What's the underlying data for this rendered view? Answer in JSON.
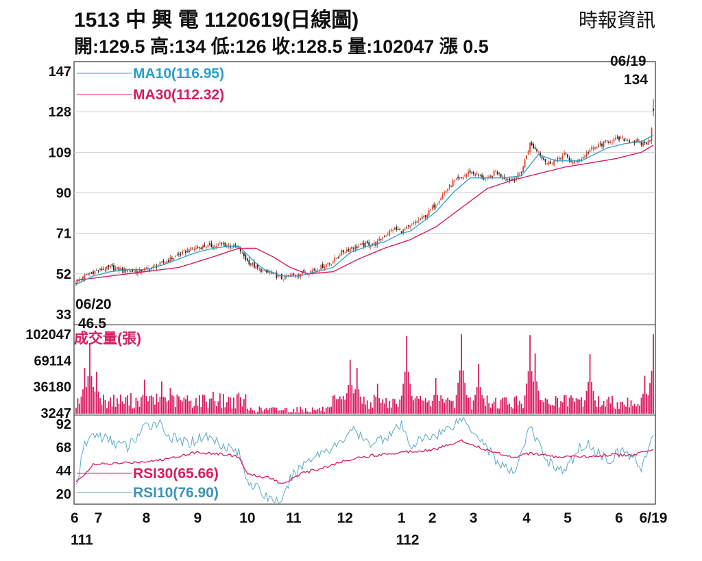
{
  "header": {
    "title": "1513 中 興 電 1120619(日線圖)",
    "source": "時報資訊",
    "ohlc_line": "開:129.5 高:134 低:126 收:128.5 量:102047 漲 0.5"
  },
  "colors": {
    "ma10": "#2a9fc9",
    "ma30": "#d81b60",
    "up_candle": "#e0442a",
    "down_candle": "#222222",
    "volume": "#d81b60",
    "rsi30": "#d81b60",
    "rsi10": "#5aa9c8",
    "grid": "#cfcfcf"
  },
  "chart_data": [
    {
      "type": "candlestick",
      "panel": "price",
      "yticks": [
        "147",
        "128",
        "109",
        "90",
        "71",
        "52",
        "33"
      ],
      "ylim": [
        33,
        147
      ],
      "legend": [
        {
          "key": "ma10",
          "label": "MA10(116.95)"
        },
        {
          "key": "ma30",
          "label": "MA30(112.32)"
        }
      ],
      "annotations": {
        "start_date": "06/20",
        "start_value": "46.5",
        "end_date": "06/19",
        "end_value": "134"
      },
      "last_candle": {
        "open": 129.5,
        "high": 134,
        "low": 126,
        "close": 128.5
      },
      "close_path": [
        [
          0,
          48
        ],
        [
          5,
          51
        ],
        [
          10,
          53
        ],
        [
          15,
          54
        ],
        [
          20,
          55
        ],
        [
          25,
          54
        ],
        [
          30,
          54
        ],
        [
          35,
          53
        ],
        [
          40,
          54
        ],
        [
          45,
          55
        ],
        [
          50,
          57
        ],
        [
          55,
          59
        ],
        [
          60,
          61
        ],
        [
          65,
          63
        ],
        [
          70,
          64
        ],
        [
          75,
          65
        ],
        [
          80,
          65
        ],
        [
          85,
          66
        ],
        [
          90,
          65
        ],
        [
          95,
          64
        ],
        [
          100,
          58
        ],
        [
          105,
          55
        ],
        [
          110,
          53
        ],
        [
          115,
          52
        ],
        [
          120,
          50
        ],
        [
          125,
          51
        ],
        [
          130,
          52
        ],
        [
          135,
          53
        ],
        [
          140,
          54
        ],
        [
          145,
          56
        ],
        [
          150,
          58
        ],
        [
          155,
          62
        ],
        [
          160,
          64
        ],
        [
          165,
          65
        ],
        [
          170,
          66
        ],
        [
          175,
          66
        ],
        [
          180,
          70
        ],
        [
          185,
          73
        ],
        [
          190,
          72
        ],
        [
          195,
          74
        ],
        [
          200,
          77
        ],
        [
          205,
          80
        ],
        [
          210,
          85
        ],
        [
          215,
          90
        ],
        [
          220,
          95
        ],
        [
          225,
          97
        ],
        [
          230,
          100
        ],
        [
          235,
          98
        ],
        [
          240,
          96
        ],
        [
          245,
          100
        ],
        [
          250,
          97
        ],
        [
          255,
          96
        ],
        [
          260,
          100
        ],
        [
          265,
          113
        ],
        [
          270,
          109
        ],
        [
          275,
          104
        ],
        [
          280,
          105
        ],
        [
          285,
          108
        ],
        [
          290,
          104
        ],
        [
          295,
          106
        ],
        [
          300,
          110
        ],
        [
          305,
          112
        ],
        [
          310,
          114
        ],
        [
          315,
          115
        ],
        [
          320,
          115
        ],
        [
          325,
          114
        ],
        [
          330,
          113
        ],
        [
          335,
          114
        ],
        [
          337,
          128.5
        ]
      ],
      "ma10_path": [
        [
          0,
          47
        ],
        [
          10,
          51
        ],
        [
          20,
          53
        ],
        [
          30,
          54
        ],
        [
          40,
          54
        ],
        [
          50,
          56
        ],
        [
          60,
          59
        ],
        [
          70,
          62
        ],
        [
          80,
          64
        ],
        [
          90,
          65
        ],
        [
          95,
          65
        ],
        [
          100,
          61
        ],
        [
          105,
          57
        ],
        [
          110,
          54
        ],
        [
          120,
          51
        ],
        [
          130,
          51
        ],
        [
          140,
          53
        ],
        [
          150,
          55
        ],
        [
          160,
          62
        ],
        [
          170,
          65
        ],
        [
          180,
          67
        ],
        [
          190,
          71
        ],
        [
          195,
          72
        ],
        [
          200,
          75
        ],
        [
          210,
          81
        ],
        [
          220,
          90
        ],
        [
          230,
          97
        ],
        [
          240,
          97
        ],
        [
          250,
          97
        ],
        [
          260,
          98
        ],
        [
          270,
          108
        ],
        [
          280,
          105
        ],
        [
          290,
          105
        ],
        [
          295,
          105
        ],
        [
          300,
          107
        ],
        [
          310,
          111
        ],
        [
          320,
          113
        ],
        [
          330,
          114
        ],
        [
          337,
          116.95
        ]
      ],
      "ma30_path": [
        [
          0,
          49
        ],
        [
          20,
          51
        ],
        [
          40,
          53
        ],
        [
          60,
          55
        ],
        [
          80,
          60
        ],
        [
          95,
          64
        ],
        [
          105,
          64
        ],
        [
          115,
          60
        ],
        [
          125,
          55
        ],
        [
          135,
          52
        ],
        [
          150,
          53
        ],
        [
          165,
          59
        ],
        [
          180,
          64
        ],
        [
          195,
          68
        ],
        [
          210,
          74
        ],
        [
          225,
          83
        ],
        [
          240,
          92
        ],
        [
          255,
          96
        ],
        [
          270,
          99
        ],
        [
          285,
          102
        ],
        [
          300,
          104
        ],
        [
          315,
          106
        ],
        [
          330,
          109
        ],
        [
          337,
          112.32
        ]
      ]
    },
    {
      "type": "bar",
      "panel": "volume",
      "title": "成交量(張)",
      "yticks": [
        "102047",
        "69114",
        "36180",
        "3247"
      ],
      "ylim": [
        3247,
        102047
      ],
      "spikes": [
        [
          5,
          60000
        ],
        [
          8,
          90000
        ],
        [
          12,
          55000
        ],
        [
          40,
          45000
        ],
        [
          50,
          43000
        ],
        [
          55,
          35000
        ],
        [
          80,
          30000
        ],
        [
          110,
          8000
        ],
        [
          160,
          70000
        ],
        [
          164,
          60000
        ],
        [
          176,
          40000
        ],
        [
          193,
          100000
        ],
        [
          210,
          47000
        ],
        [
          225,
          103000
        ],
        [
          235,
          65000
        ],
        [
          265,
          101000
        ],
        [
          268,
          78000
        ],
        [
          300,
          77000
        ],
        [
          332,
          50000
        ],
        [
          337,
          102047
        ]
      ]
    },
    {
      "type": "line",
      "panel": "rsi",
      "yticks": [
        "92",
        "68",
        "44",
        "20"
      ],
      "ylim": [
        10,
        100
      ],
      "legend": [
        {
          "key": "rsi30",
          "label": "RSI30(65.66)"
        },
        {
          "key": "rsi10",
          "label": "RSI10(76.90)"
        }
      ],
      "rsi30_path": [
        [
          0,
          32
        ],
        [
          10,
          50
        ],
        [
          30,
          52
        ],
        [
          50,
          55
        ],
        [
          70,
          63
        ],
        [
          90,
          60
        ],
        [
          95,
          58
        ],
        [
          100,
          40
        ],
        [
          115,
          36
        ],
        [
          120,
          30
        ],
        [
          130,
          40
        ],
        [
          150,
          50
        ],
        [
          160,
          56
        ],
        [
          175,
          60
        ],
        [
          190,
          63
        ],
        [
          210,
          66
        ],
        [
          225,
          75
        ],
        [
          240,
          65
        ],
        [
          255,
          58
        ],
        [
          265,
          62
        ],
        [
          280,
          58
        ],
        [
          295,
          58
        ],
        [
          310,
          60
        ],
        [
          325,
          60
        ],
        [
          337,
          65.66
        ]
      ],
      "rsi10_path": [
        [
          0,
          28
        ],
        [
          5,
          70
        ],
        [
          10,
          82
        ],
        [
          20,
          75
        ],
        [
          30,
          68
        ],
        [
          40,
          88
        ],
        [
          48,
          95
        ],
        [
          55,
          78
        ],
        [
          65,
          72
        ],
        [
          75,
          80
        ],
        [
          85,
          72
        ],
        [
          95,
          62
        ],
        [
          100,
          35
        ],
        [
          110,
          18
        ],
        [
          115,
          15
        ],
        [
          120,
          8
        ],
        [
          125,
          35
        ],
        [
          135,
          55
        ],
        [
          145,
          65
        ],
        [
          155,
          72
        ],
        [
          160,
          88
        ],
        [
          170,
          72
        ],
        [
          180,
          78
        ],
        [
          190,
          90
        ],
        [
          195,
          70
        ],
        [
          205,
          78
        ],
        [
          215,
          85
        ],
        [
          225,
          98
        ],
        [
          235,
          80
        ],
        [
          245,
          55
        ],
        [
          255,
          40
        ],
        [
          265,
          88
        ],
        [
          275,
          55
        ],
        [
          285,
          42
        ],
        [
          295,
          70
        ],
        [
          300,
          70
        ],
        [
          310,
          55
        ],
        [
          320,
          65
        ],
        [
          330,
          48
        ],
        [
          337,
          76.9
        ]
      ]
    }
  ],
  "xaxis": {
    "count": 338,
    "labels": [
      {
        "t": "6",
        "i": 0
      },
      {
        "t": "7",
        "i": 13
      },
      {
        "t": "8",
        "i": 41
      },
      {
        "t": "9",
        "i": 71
      },
      {
        "t": "10",
        "i": 100
      },
      {
        "t": "11",
        "i": 127
      },
      {
        "t": "12",
        "i": 157
      },
      {
        "t": "1",
        "i": 190
      },
      {
        "t": "2",
        "i": 208
      },
      {
        "t": "3",
        "i": 232
      },
      {
        "t": "4",
        "i": 263
      },
      {
        "t": "5",
        "i": 287
      },
      {
        "t": "6",
        "i": 317
      },
      {
        "t": "6/19",
        "i": 337
      }
    ],
    "years": [
      {
        "t": "111",
        "i": 0
      },
      {
        "t": "112",
        "i": 190
      }
    ]
  }
}
